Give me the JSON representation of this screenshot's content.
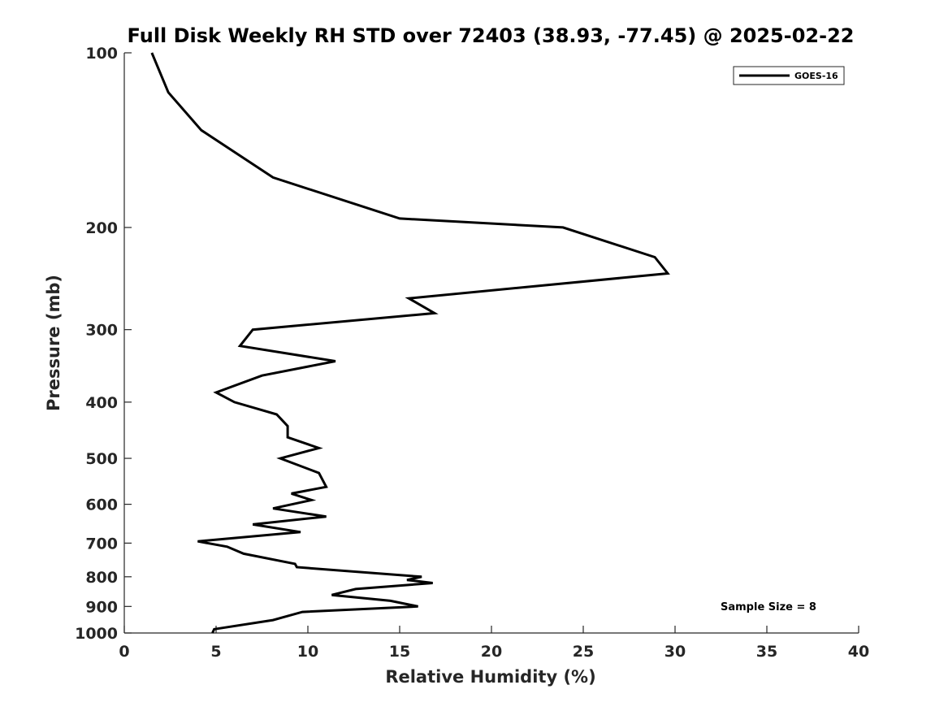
{
  "chart_data": {
    "type": "line",
    "title": "Full Disk Weekly RH STD over 72403 (38.93, -77.45) @ 2025-02-22",
    "xlabel": "Relative Humidity (%)",
    "ylabel": "Pressure (mb)",
    "xlim": [
      0,
      40
    ],
    "ylim": [
      100,
      1000
    ],
    "y_scale": "log",
    "y_reversed": true,
    "x_ticks": [
      "0",
      "5",
      "10",
      "15",
      "20",
      "25",
      "30",
      "35",
      "40"
    ],
    "y_ticks": [
      "100",
      "200",
      "300",
      "400",
      "500",
      "600",
      "700",
      "800",
      "900",
      "1000"
    ],
    "grid": false,
    "legend_position": "top-right",
    "annotation": "Sample Size = 8",
    "series": [
      {
        "name": "GOES-16",
        "color": "#000000",
        "x": [
          1.5,
          2.4,
          4.2,
          8.1,
          15.0,
          23.9,
          28.9,
          29.6,
          15.5,
          16.9,
          7.0,
          6.3,
          11.5,
          7.5,
          5.0,
          6.0,
          8.3,
          8.9,
          8.9,
          8.9,
          10.6,
          8.5,
          10.6,
          11.0,
          9.1,
          10.2,
          8.1,
          11.0,
          7.0,
          9.6,
          4.0,
          5.6,
          6.5,
          9.3,
          9.4,
          16.2,
          15.4,
          16.8,
          12.6,
          11.3,
          14.5,
          16.0,
          9.7,
          8.1,
          4.9,
          4.8
        ],
        "y": [
          100,
          117,
          136,
          164,
          193,
          200,
          225,
          240,
          265,
          281,
          300,
          320,
          340,
          360,
          385,
          400,
          420,
          440,
          448,
          460,
          480,
          500,
          530,
          560,
          575,
          590,
          610,
          630,
          650,
          670,
          695,
          710,
          730,
          760,
          770,
          800,
          810,
          820,
          840,
          860,
          880,
          900,
          920,
          950,
          985,
          1000
        ]
      }
    ]
  }
}
